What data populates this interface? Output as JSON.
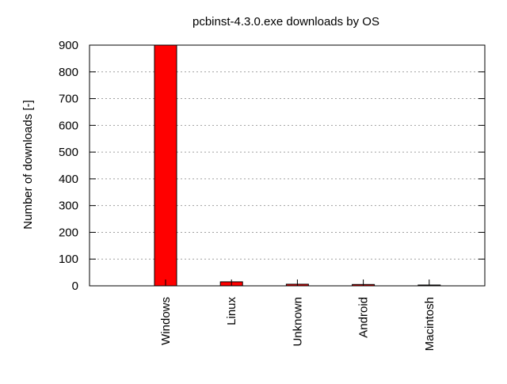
{
  "chart_data": {
    "type": "bar",
    "title": "pcbinst-4.3.0.exe downloads by OS",
    "xlabel": "",
    "ylabel": "Number of downloads [-]",
    "categories": [
      "Windows",
      "Linux",
      "Unknown",
      "Android",
      "Macintosh"
    ],
    "values": [
      900,
      15,
      6,
      5,
      3
    ],
    "ylim": [
      0,
      900
    ],
    "yticks": [
      0,
      100,
      200,
      300,
      400,
      500,
      600,
      700,
      800,
      900
    ],
    "grid": true,
    "bar_color": "#ff0000",
    "bar_outline": "#000000",
    "grid_color": "#a0a0a0"
  }
}
